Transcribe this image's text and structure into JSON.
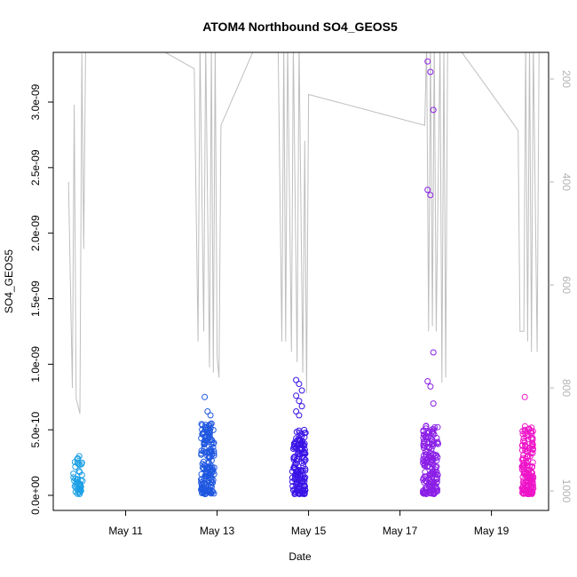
{
  "chart_data": {
    "type": "scatter",
    "title": "ATOM4 Northbound SO4_GEOS5",
    "xlabel": "Date",
    "ylabel": "SO4_GEOS5",
    "x_ticks": [
      {
        "date": "2018-05-11",
        "label": "May 11"
      },
      {
        "date": "2018-05-13",
        "label": "May 13"
      },
      {
        "date": "2018-05-15",
        "label": "May 15"
      },
      {
        "date": "2018-05-17",
        "label": "May 17"
      },
      {
        "date": "2018-05-19",
        "label": "May 19"
      }
    ],
    "xlim": [
      "2018-05-09T10:00",
      "2018-05-20T06:00"
    ],
    "ylim": [
      0,
      3.4e-09
    ],
    "y_ticks": [
      {
        "value": 0,
        "label": "0.0e+00"
      },
      {
        "value": 5e-10,
        "label": "5.0e-10"
      },
      {
        "value": 1e-09,
        "label": "1.0e-09"
      },
      {
        "value": 1.5e-09,
        "label": "1.5e-09"
      },
      {
        "value": 2e-09,
        "label": "2.0e-09"
      },
      {
        "value": 2.5e-09,
        "label": "2.5e-09"
      },
      {
        "value": 3e-09,
        "label": "3.0e-09"
      }
    ],
    "right_axis": {
      "quantity": "pressure",
      "reversed": true,
      "ylim": [
        1020,
        130
      ],
      "color": "#b3b3b3",
      "ticks": [
        {
          "value": 200,
          "label": "200"
        },
        {
          "value": 400,
          "label": "400"
        },
        {
          "value": 600,
          "label": "600"
        },
        {
          "value": 800,
          "label": "800"
        },
        {
          "value": 1000,
          "label": "1000"
        }
      ]
    },
    "clusters": [
      {
        "center": "2018-05-09T23:00",
        "spread_hours": 5,
        "color": "#1a9fe6",
        "typical_range": [
          1e-11,
          3e-10
        ],
        "outliers": []
      },
      {
        "center": "2018-05-12T19:00",
        "spread_hours": 7,
        "color": "#1f57e0",
        "typical_range": [
          1e-11,
          5.5e-10
        ],
        "outliers": [
          7.5e-10,
          6.4e-10,
          6.1e-10
        ]
      },
      {
        "center": "2018-05-14T19:00",
        "spread_hours": 7,
        "color": "#3a14e6",
        "typical_range": [
          1e-11,
          5e-10
        ],
        "outliers": [
          8.8e-10,
          8.5e-10,
          8e-10,
          7.6e-10,
          7.2e-10,
          6.8e-10,
          6.4e-10,
          6.1e-10
        ]
      },
      {
        "center": "2018-05-17T16:00",
        "spread_hours": 8,
        "color": "#8a1ee6",
        "typical_range": [
          1e-11,
          5.5e-10
        ],
        "outliers": [
          3.31e-09,
          3.23e-09,
          2.94e-09,
          2.33e-09,
          2.29e-09,
          1.09e-09,
          8.7e-10,
          8.3e-10,
          7e-10
        ]
      },
      {
        "center": "2018-05-19T19:00",
        "spread_hours": 6,
        "color": "#ee14c8",
        "typical_range": [
          1e-11,
          5.3e-10
        ],
        "outliers": [
          7.5e-10
        ]
      }
    ],
    "pressure_line": {
      "color": "#bfbfbf",
      "points": [
        [
          "2018-05-09T18:00",
          400
        ],
        [
          "2018-05-09T20:00",
          800
        ],
        [
          "2018-05-09T21:00",
          250
        ],
        [
          "2018-05-09T22:00",
          820
        ],
        [
          "2018-05-10T00:00",
          850
        ],
        [
          "2018-05-10T01:00",
          150
        ],
        [
          "2018-05-10T02:00",
          530
        ],
        [
          "2018-05-10T03:00",
          130
        ],
        [
          "2018-05-10T06:00",
          120
        ],
        [
          "2018-05-11T12:00",
          130
        ],
        [
          "2018-05-12T12:00",
          180
        ],
        [
          "2018-05-12T14:00",
          710
        ],
        [
          "2018-05-12T15:00",
          130
        ],
        [
          "2018-05-12T17:00",
          690
        ],
        [
          "2018-05-12T18:00",
          130
        ],
        [
          "2018-05-12T20:00",
          760
        ],
        [
          "2018-05-12T21:00",
          130
        ],
        [
          "2018-05-12T22:00",
          770
        ],
        [
          "2018-05-12T23:00",
          130
        ],
        [
          "2018-05-13T00:00",
          740
        ],
        [
          "2018-05-13T01:00",
          780
        ],
        [
          "2018-05-13T02:00",
          290
        ],
        [
          "2018-05-13T22:00",
          120
        ],
        [
          "2018-05-14T08:00",
          120
        ],
        [
          "2018-05-14T10:00",
          710
        ],
        [
          "2018-05-14T11:00",
          130
        ],
        [
          "2018-05-14T12:00",
          710
        ],
        [
          "2018-05-14T13:00",
          130
        ],
        [
          "2018-05-14T15:00",
          730
        ],
        [
          "2018-05-14T16:00",
          130
        ],
        [
          "2018-05-14T18:00",
          750
        ],
        [
          "2018-05-14T19:00",
          130
        ],
        [
          "2018-05-14T21:00",
          770
        ],
        [
          "2018-05-14T22:00",
          320
        ],
        [
          "2018-05-14T23:00",
          810
        ],
        [
          "2018-05-15T00:00",
          230
        ],
        [
          "2018-05-17T13:00",
          290
        ],
        [
          "2018-05-17T14:00",
          130
        ],
        [
          "2018-05-17T15:00",
          690
        ],
        [
          "2018-05-17T16:00",
          130
        ],
        [
          "2018-05-17T17:00",
          680
        ],
        [
          "2018-05-17T18:00",
          130
        ],
        [
          "2018-05-17T19:00",
          690
        ],
        [
          "2018-05-17T21:00",
          130
        ],
        [
          "2018-05-17T22:00",
          790
        ],
        [
          "2018-05-17T23:00",
          130
        ],
        [
          "2018-05-18T00:00",
          780
        ],
        [
          "2018-05-18T01:00",
          130
        ],
        [
          "2018-05-18T03:00",
          120
        ],
        [
          "2018-05-19T14:00",
          300
        ],
        [
          "2018-05-19T15:00",
          690
        ],
        [
          "2018-05-19T17:00",
          690
        ],
        [
          "2018-05-19T18:00",
          130
        ],
        [
          "2018-05-19T19:00",
          710
        ],
        [
          "2018-05-19T20:00",
          130
        ],
        [
          "2018-05-19T21:00",
          730
        ],
        [
          "2018-05-19T22:00",
          130
        ],
        [
          "2018-05-20T00:00",
          730
        ],
        [
          "2018-05-20T01:00",
          130
        ]
      ]
    }
  }
}
